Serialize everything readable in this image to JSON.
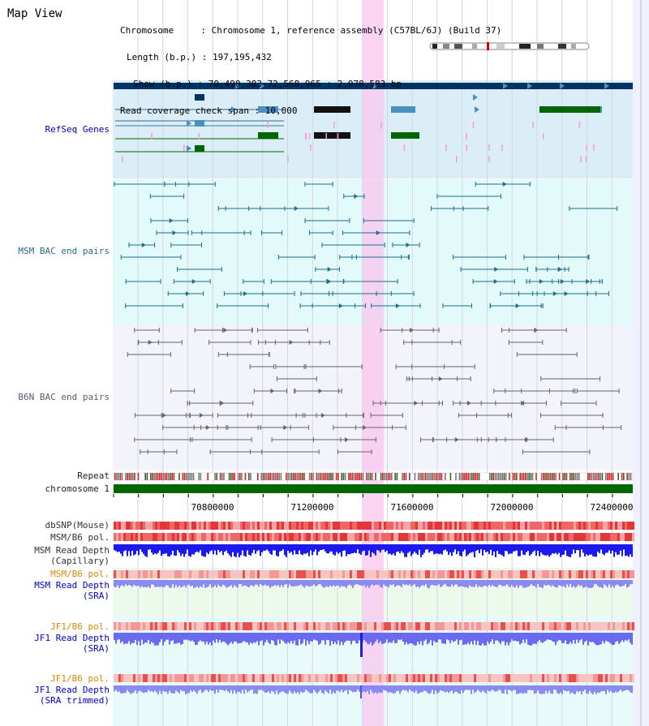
{
  "page_title": "Map View",
  "info": {
    "chromosome": "Chromosome     : Chromosome 1, reference assembly (C57BL/6J) (Build 37)",
    "length": "Length (b.p.) : 197,195,432",
    "show": "Show (b.p.) : 70,490,383-72,568,965 : 2,078,583 bp",
    "coverage": "Read coverage check span : 10,000"
  },
  "tracks": {
    "refseq": "RefSeq Genes",
    "msm_bac": "MSM BAC end pairs",
    "b6n_bac": "B6N BAC end pairs",
    "repeat": "Repeat",
    "chromosome": "chromosome 1",
    "dbsnp": "dbSNP(Mouse)",
    "msm_b6_pol_1": "MSM/B6 pol.",
    "msm_depth_cap_1": "MSM Read Depth",
    "msm_depth_cap_2": "(Capillary)",
    "msm_b6_pol_2": "MSM/B6 pol.",
    "msm_depth_sra_1": "MSM Read Depth",
    "msm_depth_sra_2": "(SRA)",
    "jf1_b6_pol_1": "JF1/B6 pol.",
    "jf1_depth_sra_1": "JF1 Read Depth",
    "jf1_depth_sra_2": "(SRA)",
    "jf1_b6_pol_2": "JF1/B6 pol.",
    "jf1_depth_trim_1": "JF1 Read Depth",
    "jf1_depth_trim_2": "(SRA trimmed)"
  },
  "axis": {
    "ticks": [
      "70800000",
      "71200000",
      "71600000",
      "72000000",
      "72400000"
    ]
  },
  "colors": {
    "refseq_bg": "#dbeef8",
    "msm_bg": "#e3fafa",
    "b6n_bg": "#f2f3fb",
    "highlight": "#f9d6f2",
    "chromosome_bar": "#006600",
    "depth_dark": "#1a1aee",
    "depth_light": "#8a8af0"
  }
}
